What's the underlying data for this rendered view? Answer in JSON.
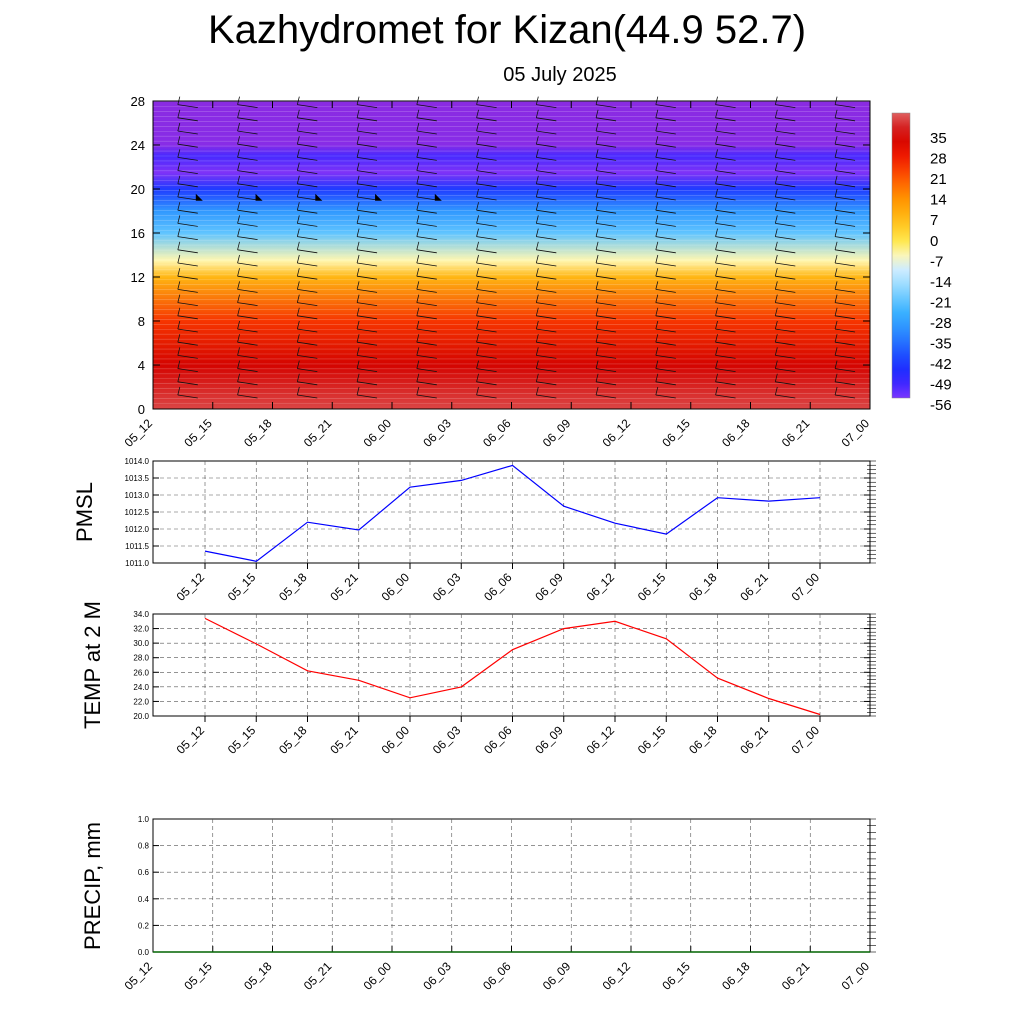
{
  "header": {
    "title": "Kazhydromet for Kizan(44.9 52.7)",
    "subtitle": "05 July 2025"
  },
  "chart_data": [
    {
      "type": "heatmap",
      "name": "vertical-profile",
      "title": "",
      "xlabel": "",
      "ylabel": "",
      "x_ticks": [
        "05_12",
        "05_15",
        "05_18",
        "05_21",
        "06_00",
        "06_03",
        "06_06",
        "06_09",
        "06_12",
        "06_15",
        "06_18",
        "06_21",
        "07_00"
      ],
      "y_ticks": [
        0,
        4,
        8,
        12,
        16,
        20,
        24,
        28
      ],
      "ylim": [
        0,
        28
      ],
      "colorbar_labels": [
        "35",
        "28",
        "21",
        "14",
        "7",
        "0",
        "-7",
        "-14",
        "-21",
        "-28",
        "-35",
        "-42",
        "-49",
        "-56"
      ],
      "colorbar_range": [
        -56,
        35
      ],
      "temperature_by_level": [
        {
          "level": 0,
          "value": 33
        },
        {
          "level": 4,
          "value": 27
        },
        {
          "level": 8,
          "value": 18
        },
        {
          "level": 12,
          "value": 2
        },
        {
          "level": 13.5,
          "value": -10
        },
        {
          "level": 16,
          "value": -25
        },
        {
          "level": 18,
          "value": -33
        },
        {
          "level": 20,
          "value": -45
        },
        {
          "level": 21.5,
          "value": -58
        },
        {
          "level": 23,
          "value": -52
        },
        {
          "level": 24,
          "value": -62
        },
        {
          "level": 28,
          "value": -63
        }
      ],
      "wind_barbs": true,
      "colors": {
        "high": "#cf0000",
        "low": "#8a2be2"
      }
    },
    {
      "type": "line",
      "name": "pmsl",
      "ylabel": "PMSL",
      "x": [
        "05_12",
        "05_15",
        "05_18",
        "05_21",
        "06_00",
        "06_03",
        "06_06",
        "06_09",
        "06_12",
        "06_15",
        "06_18",
        "06_21",
        "07_00"
      ],
      "series": [
        {
          "values": [
            1011.35,
            1011.05,
            1012.2,
            1011.97,
            1013.23,
            1013.43,
            1013.87,
            1012.67,
            1012.17,
            1011.85,
            1012.92,
            1012.82,
            1012.92
          ]
        }
      ],
      "ylim": [
        1011.0,
        1014.0
      ],
      "y_ticks": [
        "1011.0",
        "1011.5",
        "1012.0",
        "1012.5",
        "1013.0",
        "1013.5",
        "1014.0"
      ],
      "color": "#0000ff",
      "grid": true
    },
    {
      "type": "line",
      "name": "temp-2m",
      "ylabel": "TEMP at 2 M",
      "x": [
        "05_12",
        "05_15",
        "05_18",
        "05_21",
        "06_00",
        "06_03",
        "06_06",
        "06_09",
        "06_12",
        "06_15",
        "06_18",
        "06_21",
        "07_00"
      ],
      "series": [
        {
          "values": [
            33.4,
            29.9,
            26.2,
            24.9,
            22.5,
            24.0,
            29.1,
            32.0,
            33.0,
            30.6,
            25.2,
            22.4,
            20.2
          ]
        }
      ],
      "ylim": [
        20.0,
        34.0
      ],
      "y_ticks": [
        "20.0",
        "22.0",
        "24.0",
        "26.0",
        "28.0",
        "30.0",
        "32.0",
        "34.0"
      ],
      "color": "#ff0000",
      "grid": true
    },
    {
      "type": "line",
      "name": "precip",
      "ylabel": "PRECIP, mm",
      "x": [
        "05_12",
        "05_15",
        "05_18",
        "05_21",
        "06_00",
        "06_03",
        "06_06",
        "06_09",
        "06_12",
        "06_15",
        "06_18",
        "06_21",
        "07_00"
      ],
      "series": [
        {
          "values": [
            0,
            0,
            0,
            0,
            0,
            0,
            0,
            0,
            0,
            0,
            0,
            0,
            0
          ]
        }
      ],
      "ylim": [
        0.0,
        1.0
      ],
      "y_ticks": [
        "0.0",
        "0.2",
        "0.4",
        "0.6",
        "0.8",
        "1.0"
      ],
      "color": "#006400",
      "grid": true
    }
  ]
}
